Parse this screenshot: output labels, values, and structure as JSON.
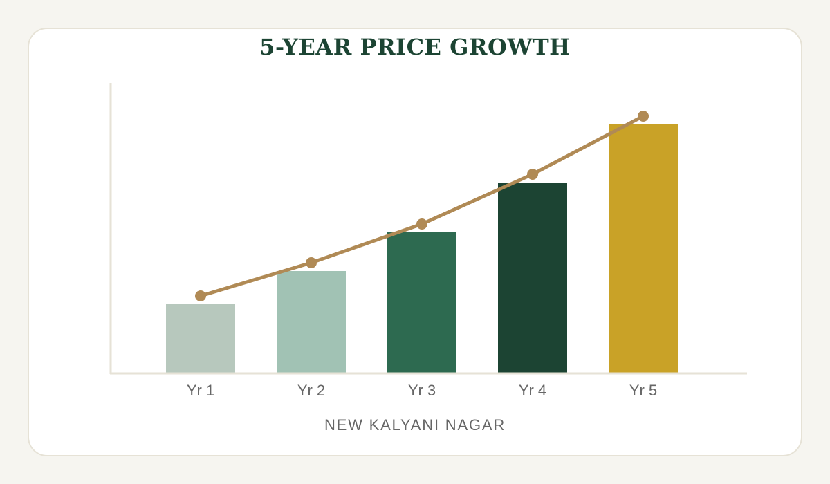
{
  "chart_data": {
    "type": "bar",
    "title": "5-YEAR PRICE GROWTH",
    "xlabel": "NEW KALYANI NAGAR",
    "ylabel": "",
    "categories": [
      "Yr 1",
      "Yr 2",
      "Yr 3",
      "Yr 4",
      "Yr 5"
    ],
    "values": [
      100,
      148,
      204,
      276,
      360
    ],
    "trend_values": [
      112,
      160,
      216,
      288,
      372
    ],
    "ylim": [
      0,
      420
    ],
    "grid": false,
    "legend": "none",
    "colors": {
      "bars": [
        "#b7c8bd",
        "#a1c2b4",
        "#2d6a50",
        "#1c4433",
        "#c9a227"
      ],
      "trend_line": "#b08a55",
      "axis": "#e6e2d6",
      "tick_text": "#666666",
      "title": "#1c4433"
    }
  }
}
